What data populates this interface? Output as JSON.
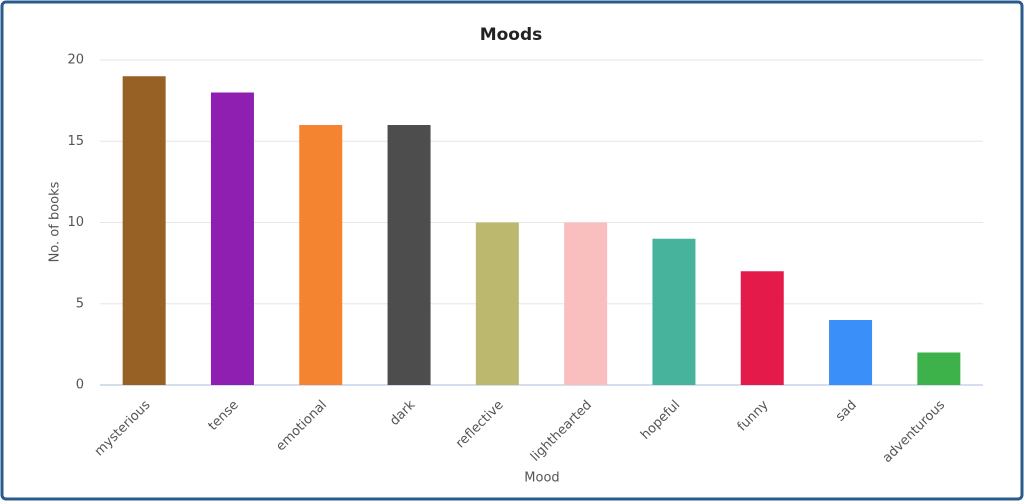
{
  "chart_data": {
    "type": "bar",
    "title": "Moods",
    "x_label": "Mood",
    "y_label": "No. of books",
    "categories": [
      "mysterious",
      "tense",
      "emotional",
      "dark",
      "reflective",
      "lighthearted",
      "hopeful",
      "funny",
      "sad",
      "adventurous"
    ],
    "values": [
      19,
      18,
      16,
      16,
      10,
      10,
      9,
      7,
      4,
      2
    ],
    "colors": [
      "#976125",
      "#8e1fb1",
      "#f58431",
      "#4d4d4d",
      "#bcb96e",
      "#f9bfbf",
      "#48b39c",
      "#e31a4a",
      "#3a8ff8",
      "#3db24a"
    ],
    "ylim": [
      0,
      20
    ],
    "yticks": [
      0,
      5,
      10,
      15,
      20
    ],
    "grid": true
  }
}
